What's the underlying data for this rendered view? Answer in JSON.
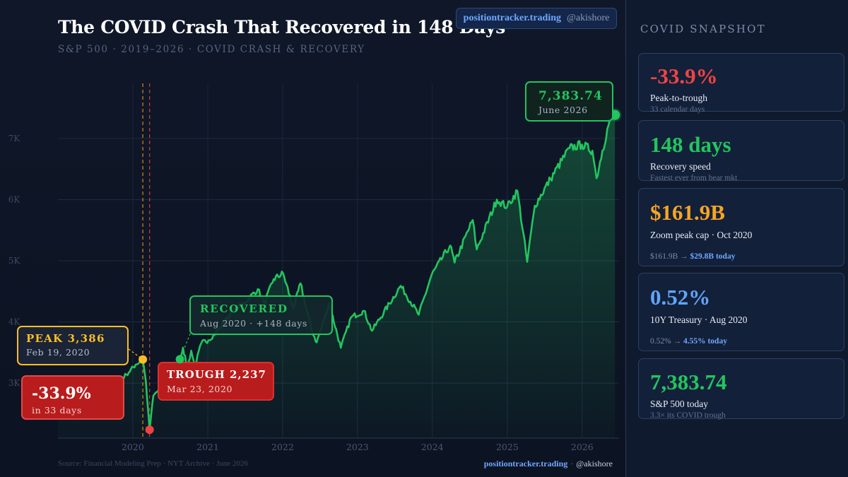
{
  "header": {
    "title": "The COVID Crash That Recovered in 148 Days",
    "subtitle": "S&P 500  ·  2019–2026  ·  COVID CRASH & RECOVERY",
    "brand_site": "positiontracker.trading",
    "brand_handle": "@akishore"
  },
  "footer": {
    "source": "Source: Financial Modeling Prep · NYT Archive · June 2026",
    "brand_site": "positiontracker.trading",
    "brand_sep": "·",
    "brand_handle": "@akishore"
  },
  "colors": {
    "line": "#22c55e",
    "peak": "#fbbf24",
    "trough": "#ef4444",
    "recovered": "#22c55e",
    "accent_orange": "#f5a524",
    "accent_blue": "#60a5fa"
  },
  "chart_data": {
    "type": "line",
    "title": "The COVID Crash That Recovered in 148 Days",
    "xlabel": "",
    "ylabel": "",
    "x_ticks": [
      "2020",
      "2021",
      "2022",
      "2023",
      "2024",
      "2025",
      "2026"
    ],
    "y_ticks": [
      "3K",
      "4K",
      "5K",
      "6K",
      "7K"
    ],
    "xlim": [
      "2019-01-01",
      "2026-06-30"
    ],
    "ylim": [
      2100,
      7900
    ],
    "grid": true,
    "series": [
      {
        "name": "",
        "points": [
          [
            "2019-01-01",
            2510
          ],
          [
            "2019-03-01",
            2800
          ],
          [
            "2019-05-01",
            2910
          ],
          [
            "2019-06-01",
            2760
          ],
          [
            "2019-08-01",
            2950
          ],
          [
            "2019-10-01",
            2960
          ],
          [
            "2019-12-01",
            3140
          ],
          [
            "2020-01-15",
            3300
          ],
          [
            "2020-02-19",
            3386
          ],
          [
            "2020-03-05",
            3020
          ],
          [
            "2020-03-23",
            2237
          ],
          [
            "2020-04-10",
            2790
          ],
          [
            "2020-05-15",
            2920
          ],
          [
            "2020-06-08",
            3230
          ],
          [
            "2020-07-15",
            3230
          ],
          [
            "2020-08-18",
            3390
          ],
          [
            "2020-09-02",
            3580
          ],
          [
            "2020-09-23",
            3240
          ],
          [
            "2020-10-12",
            3530
          ],
          [
            "2020-10-30",
            3270
          ],
          [
            "2020-12-01",
            3660
          ],
          [
            "2021-01-04",
            3700
          ],
          [
            "2021-03-01",
            3900
          ],
          [
            "2021-05-01",
            4180
          ],
          [
            "2021-07-01",
            4320
          ],
          [
            "2021-09-02",
            4536
          ],
          [
            "2021-10-04",
            4300
          ],
          [
            "2021-11-18",
            4700
          ],
          [
            "2022-01-03",
            4796
          ],
          [
            "2022-02-23",
            4220
          ],
          [
            "2022-03-29",
            4630
          ],
          [
            "2022-05-20",
            3900
          ],
          [
            "2022-06-16",
            3666
          ],
          [
            "2022-08-16",
            4305
          ],
          [
            "2022-10-12",
            3577
          ],
          [
            "2022-12-01",
            4076
          ],
          [
            "2023-02-02",
            4180
          ],
          [
            "2023-03-13",
            3855
          ],
          [
            "2023-07-31",
            4590
          ],
          [
            "2023-10-27",
            4117
          ],
          [
            "2023-12-29",
            4770
          ],
          [
            "2024-03-28",
            5250
          ],
          [
            "2024-04-19",
            4970
          ],
          [
            "2024-07-16",
            5667
          ],
          [
            "2024-08-05",
            5186
          ],
          [
            "2024-11-11",
            6000
          ],
          [
            "2024-12-31",
            5881
          ],
          [
            "2025-02-19",
            6144
          ],
          [
            "2025-04-08",
            4982
          ],
          [
            "2025-05-15",
            5900
          ],
          [
            "2025-07-31",
            6340
          ],
          [
            "2025-10-31",
            6840
          ],
          [
            "2025-12-31",
            6900
          ],
          [
            "2026-02-20",
            6800
          ],
          [
            "2026-03-12",
            6350
          ],
          [
            "2026-04-10",
            6800
          ],
          [
            "2026-05-15",
            7300
          ],
          [
            "2026-06-10",
            7383.74
          ]
        ]
      }
    ],
    "annotations": [
      {
        "kind": "peak",
        "date": "2020-02-19",
        "value": 3386,
        "label": "PEAK 3,386",
        "sublabel": "Feb 19, 2020"
      },
      {
        "kind": "trough",
        "date": "2020-03-23",
        "value": 2237,
        "label": "TROUGH 2,237",
        "sublabel": "Mar 23, 2020"
      },
      {
        "kind": "drawdown",
        "label": "-33.9%",
        "sublabel": "in 33 days"
      },
      {
        "kind": "recovered",
        "date": "2020-08-18",
        "value": 3390,
        "label": "RECOVERED",
        "sublabel": "Aug 2020 · +148 days"
      },
      {
        "kind": "latest",
        "date": "2026-06-10",
        "value": 7383.74,
        "label": "7,383.74",
        "sublabel": "June 2026"
      }
    ],
    "vlines": [
      {
        "date": "2020-02-19",
        "color": "#f59e0b"
      },
      {
        "date": "2020-03-23",
        "color": "#ef4444"
      }
    ]
  },
  "sidebar": {
    "title": "COVID SNAPSHOT",
    "cards": [
      {
        "value": "-33.9%",
        "color": "#ef4444",
        "label": "Peak-to-trough",
        "sub": "33 calendar days"
      },
      {
        "value": "148 days",
        "color": "#22c55e",
        "label": "Recovery speed",
        "sub": "Fastest ever from bear mkt"
      },
      {
        "value": "$161.9B",
        "color": "#f5a524",
        "label": "Zoom peak cap · Oct 2020",
        "cmp_from": "$161.9B",
        "cmp_arrow": "→",
        "cmp_to": "$29.8B today"
      },
      {
        "value": "0.52%",
        "color": "#60a5fa",
        "label": "10Y Treasury · Aug 2020",
        "cmp_from": "0.52%",
        "cmp_arrow": "→",
        "cmp_to": "4.55% today"
      },
      {
        "value": "7,383.74",
        "color": "#22c55e",
        "label": "S&P 500 today",
        "sub": "3.3× its COVID trough"
      }
    ]
  }
}
